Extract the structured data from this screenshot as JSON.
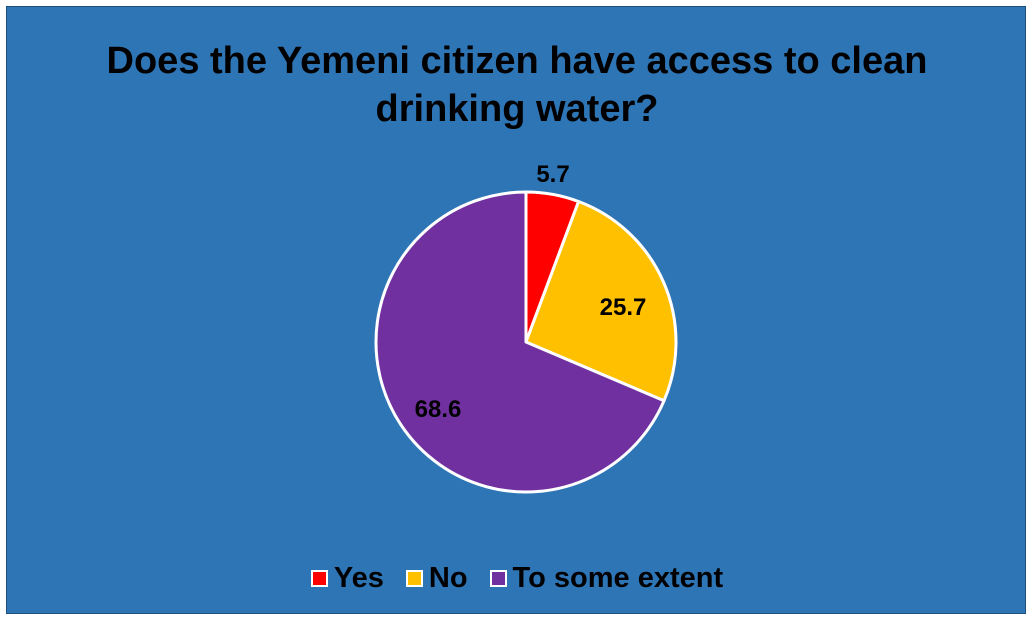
{
  "chart_data": {
    "type": "pie",
    "title_lines": [
      "Does the Yemeni citizen have access to clean",
      "drinking water?"
    ],
    "categories": [
      "Yes",
      "No",
      "To some extent"
    ],
    "values": [
      5.7,
      25.7,
      68.6
    ],
    "data_labels": [
      "5.7",
      "25.7",
      "68.6"
    ],
    "colors": [
      "#FF0000",
      "#FFC000",
      "#7030A0"
    ],
    "background_color": "#2E75B6",
    "slice_border_color": "#FFFFFF",
    "start_angle": "12 o'clock",
    "direction": "clockwise",
    "legend_position": "bottom"
  }
}
